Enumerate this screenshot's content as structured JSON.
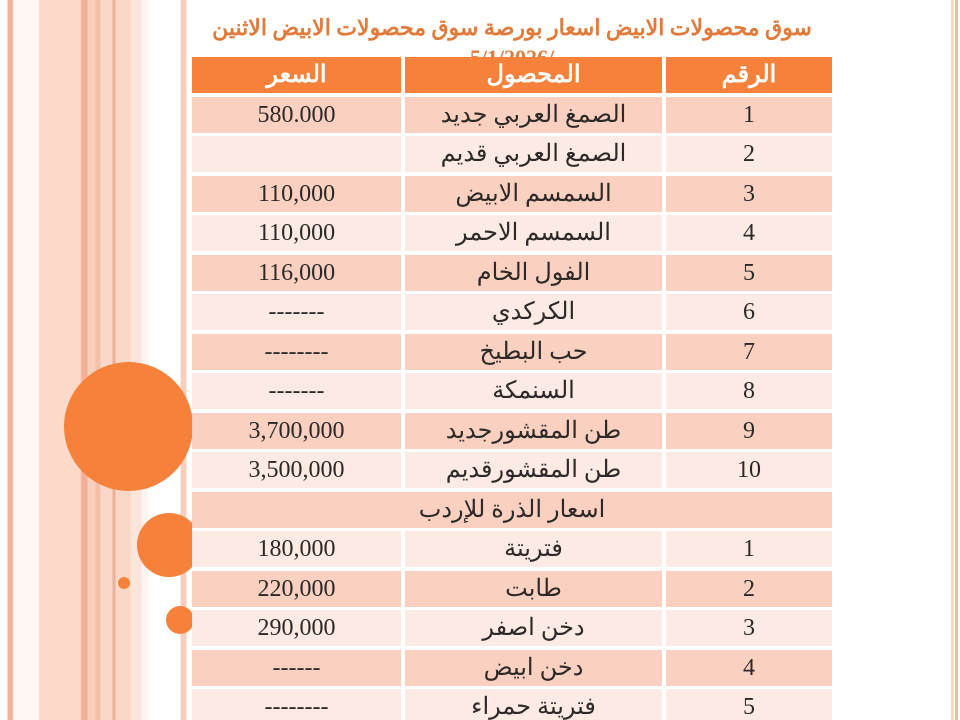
{
  "title": "سوق محصولات الابيض اسعار بورصة سوق محصولات الابيض الاثنين /5/1/2026",
  "table": {
    "headers": [
      "الرقم",
      "المحصول",
      "السعر"
    ],
    "section_label": "اسعار الذرة للإردب",
    "rows": [
      {
        "num": "1",
        "product": "الصمغ العربي جديد",
        "price": "580.000"
      },
      {
        "num": "2",
        "product": "الصمغ العربي قديم",
        "price": ""
      },
      {
        "num": "3",
        "product": "السمسم الابيض",
        "price": "110,000"
      },
      {
        "num": "4",
        "product": "السمسم الاحمر",
        "price": "110,000"
      },
      {
        "num": "5",
        "product": "الفول الخام",
        "price": "116,000"
      },
      {
        "num": "6",
        "product": "الكركدي",
        "price": "-------"
      },
      {
        "num": "7",
        "product": "حب البطيخ",
        "price": "--------"
      },
      {
        "num": "8",
        "product": "السنمكة",
        "price": "-------"
      },
      {
        "num": "9",
        "product": "طن المقشورجديد",
        "price": "3,700,000"
      },
      {
        "num": "10",
        "product": "طن المقشورقديم",
        "price": "3,500,000"
      },
      {
        "type": "section",
        "label": "اسعار الذرة للإردب"
      },
      {
        "num": "1",
        "product": "فتريتة",
        "price": "180,000"
      },
      {
        "num": "2",
        "product": "طابت",
        "price": "220,000"
      },
      {
        "num": "3",
        "product": "دخن اصفر",
        "price": "290,000"
      },
      {
        "num": "4",
        "product": "دخن ابيض",
        "price": "------"
      },
      {
        "num": "5",
        "product": "فتريتة حمراء",
        "price": "--------"
      }
    ]
  },
  "colors": {
    "accent_orange": "#f5813b",
    "title_orange": "#e07b3c",
    "row_dark": "#fad1c1",
    "row_light": "#fcebe4",
    "header_text": "#ffffff",
    "body_text": "#2d2926"
  }
}
